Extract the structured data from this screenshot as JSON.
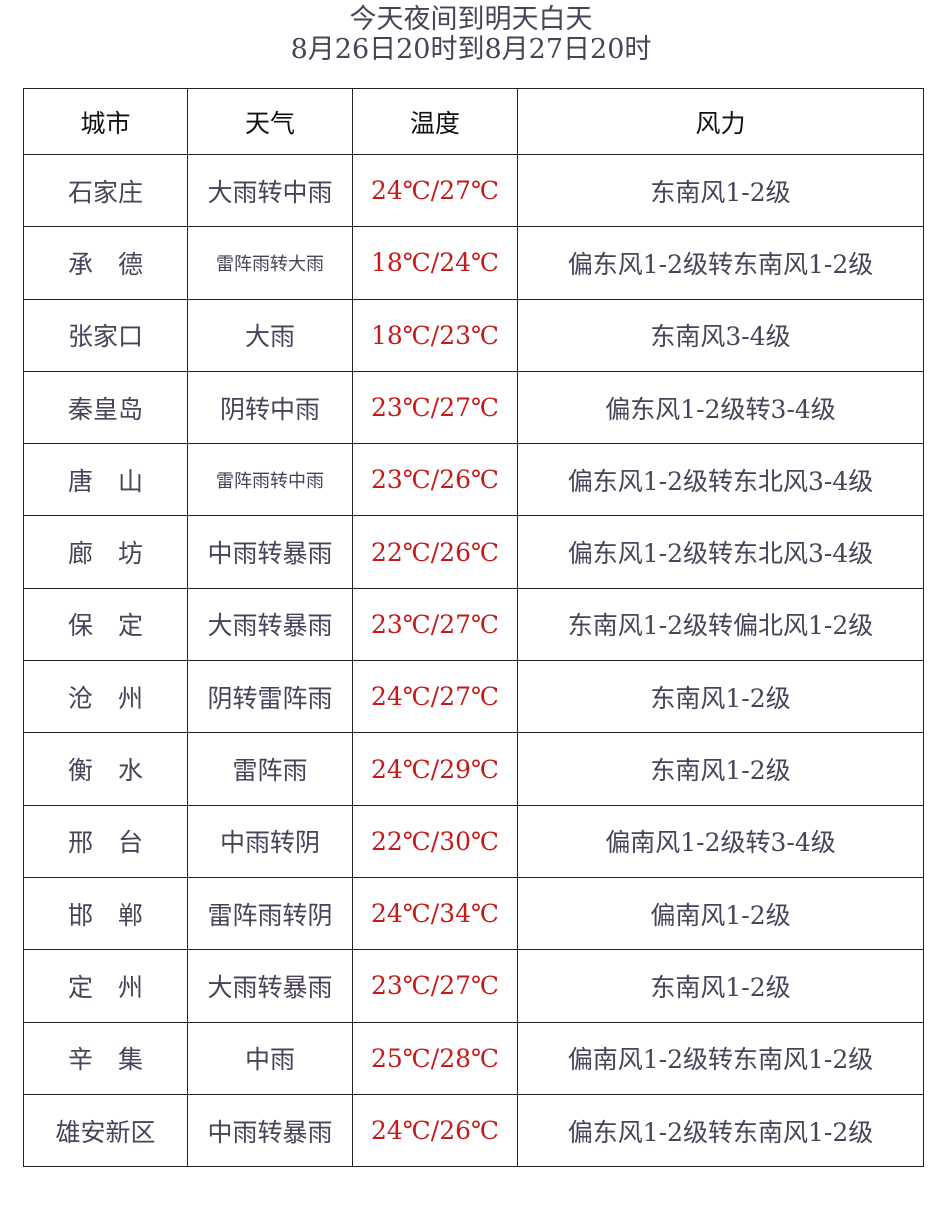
{
  "title_line1": "今天夜间到明天白天",
  "title_line2": "8月26日20时到8月27日20时",
  "colors": {
    "text": "#4a4258",
    "temperature": "#c41a1a",
    "border": "#222222"
  },
  "headers": [
    "城市",
    "天气",
    "温度",
    "风力"
  ],
  "rows": [
    {
      "city": "石家庄",
      "weather": "大雨转中雨",
      "temp": "24℃/27℃",
      "wind": "东南风1-2级"
    },
    {
      "city": "承　德",
      "weather": "雷阵雨转大雨",
      "temp": "18℃/24℃",
      "wind": "偏东风1-2级转东南风1-2级"
    },
    {
      "city": "张家口",
      "weather": "大雨",
      "temp": "18℃/23℃",
      "wind": "东南风3-4级"
    },
    {
      "city": "秦皇岛",
      "weather": "阴转中雨",
      "temp": "23℃/27℃",
      "wind": "偏东风1-2级转3-4级"
    },
    {
      "city": "唐　山",
      "weather": "雷阵雨转中雨",
      "temp": "23℃/26℃",
      "wind": "偏东风1-2级转东北风3-4级"
    },
    {
      "city": "廊　坊",
      "weather": "中雨转暴雨",
      "temp": "22℃/26℃",
      "wind": "偏东风1-2级转东北风3-4级"
    },
    {
      "city": "保　定",
      "weather": "大雨转暴雨",
      "temp": "23℃/27℃",
      "wind": "东南风1-2级转偏北风1-2级"
    },
    {
      "city": "沧　州",
      "weather": "阴转雷阵雨",
      "temp": "24℃/27℃",
      "wind": "东南风1-2级"
    },
    {
      "city": "衡　水",
      "weather": "雷阵雨",
      "temp": "24℃/29℃",
      "wind": "东南风1-2级"
    },
    {
      "city": "邢　台",
      "weather": "中雨转阴",
      "temp": "22℃/30℃",
      "wind": "偏南风1-2级转3-4级"
    },
    {
      "city": "邯　郸",
      "weather": "雷阵雨转阴",
      "temp": "24℃/34℃",
      "wind": "偏南风1-2级"
    },
    {
      "city": "定　州",
      "weather": "大雨转暴雨",
      "temp": "23℃/27℃",
      "wind": "东南风1-2级"
    },
    {
      "city": "辛　集",
      "weather": "中雨",
      "temp": "25℃/28℃",
      "wind": "偏南风1-2级转东南风1-2级"
    },
    {
      "city": "雄安新区",
      "weather": "中雨转暴雨",
      "temp": "24℃/26℃",
      "wind": "偏东风1-2级转东南风1-2级"
    }
  ]
}
